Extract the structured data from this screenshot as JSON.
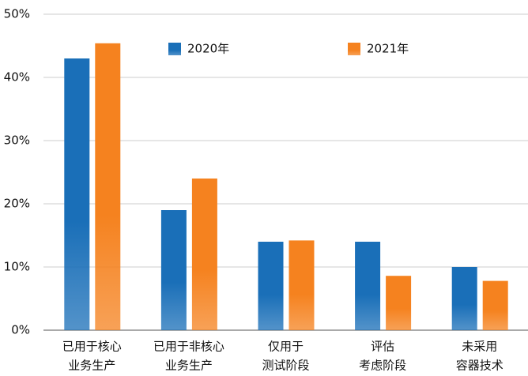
{
  "chart_data": {
    "type": "bar",
    "categories": [
      [
        "已用于核心",
        "业务生产"
      ],
      [
        "已用于非核心",
        "业务生产"
      ],
      [
        "仅用于",
        "测试阶段"
      ],
      [
        "评估",
        "考虑阶段"
      ],
      [
        "未采用",
        "容器技术"
      ]
    ],
    "series": [
      {
        "name": "2020年",
        "color": "#1a6fb8",
        "values": [
          43,
          19,
          14,
          14,
          10
        ]
      },
      {
        "name": "2021年",
        "color": "#f5821f",
        "values": [
          45.4,
          24,
          14.2,
          8.6,
          7.8
        ]
      }
    ],
    "ylim": [
      0,
      50
    ],
    "yticks": [
      {
        "value": 0,
        "label": "0%"
      },
      {
        "value": 10,
        "label": "10%"
      },
      {
        "value": 20,
        "label": "20%"
      },
      {
        "value": 30,
        "label": "30%"
      },
      {
        "value": 40,
        "label": "40%"
      },
      {
        "value": 50,
        "label": "50%"
      }
    ],
    "grid": true
  }
}
